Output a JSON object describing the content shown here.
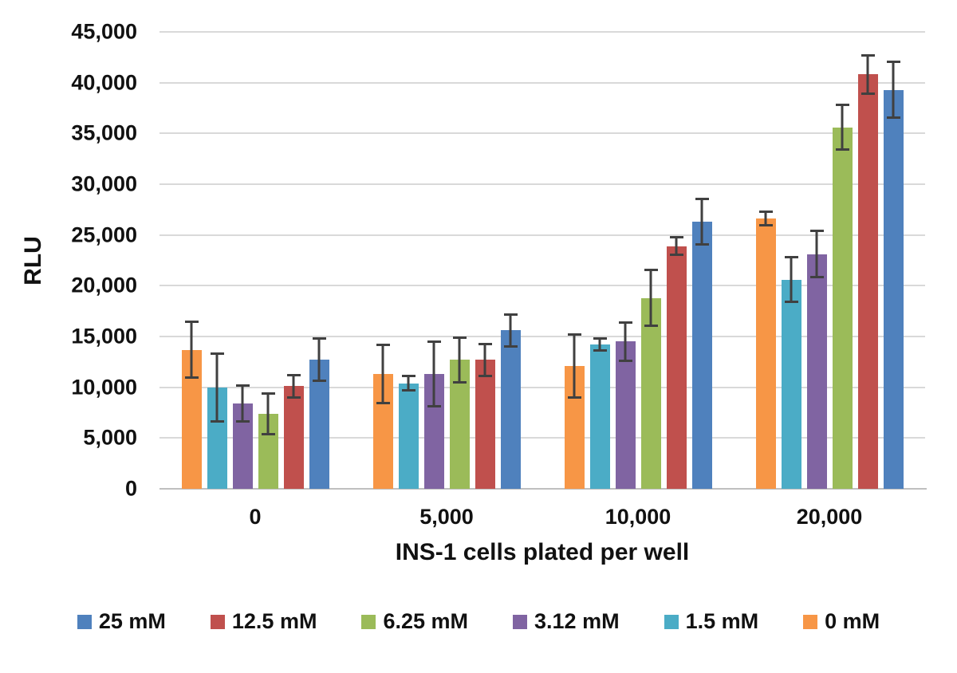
{
  "chart_data": {
    "type": "bar",
    "title": "",
    "ylabel": "RLU",
    "xlabel": "INS-1 cells plated per well",
    "ylim": [
      0,
      45000
    ],
    "ytick_step": 5000,
    "ytick_labels": [
      "0",
      "5,000",
      "10,000",
      "15,000",
      "20,000",
      "25,000",
      "30,000",
      "35,000",
      "40,000",
      "45,000"
    ],
    "categories": [
      "0",
      "5,000",
      "10,000",
      "20,000"
    ],
    "bar_order_in_group": [
      "0 mM",
      "1.5 mM",
      "3.12 mM",
      "6.25 mM",
      "12.5 mM",
      "25 mM"
    ],
    "legend_position": "bottom",
    "grid": true,
    "error_bars": true,
    "series": [
      {
        "name": "25 mM",
        "color": "#4F81BD",
        "values": [
          12700,
          15600,
          26300,
          39300
        ],
        "errors": [
          2200,
          1700,
          2350,
          2900
        ]
      },
      {
        "name": "12.5 mM",
        "color": "#C0504D",
        "values": [
          10100,
          12700,
          23900,
          40800
        ],
        "errors": [
          1200,
          1700,
          1000,
          2000
        ]
      },
      {
        "name": "6.25 mM",
        "color": "#9BBB59",
        "values": [
          7400,
          12700,
          18800,
          35600
        ],
        "errors": [
          2100,
          2300,
          2850,
          2300
        ]
      },
      {
        "name": "3.12 mM",
        "color": "#8064A2",
        "values": [
          8400,
          11300,
          14500,
          23100
        ],
        "errors": [
          1850,
          3300,
          2000,
          2400
        ]
      },
      {
        "name": "1.5 mM",
        "color": "#4BACC6",
        "values": [
          10000,
          10400,
          14200,
          20600
        ],
        "errors": [
          3450,
          850,
          700,
          2300
        ]
      },
      {
        "name": "0 mM",
        "color": "#F79646",
        "values": [
          13700,
          11300,
          12100,
          26600
        ],
        "errors": [
          2900,
          3000,
          3200,
          800
        ]
      }
    ],
    "colors": {
      "error_bar": "#404040",
      "gridline": "#D9D9D9",
      "axis_line": "#BFBFBF",
      "text": "#111111",
      "background": "#FFFFFF"
    }
  }
}
